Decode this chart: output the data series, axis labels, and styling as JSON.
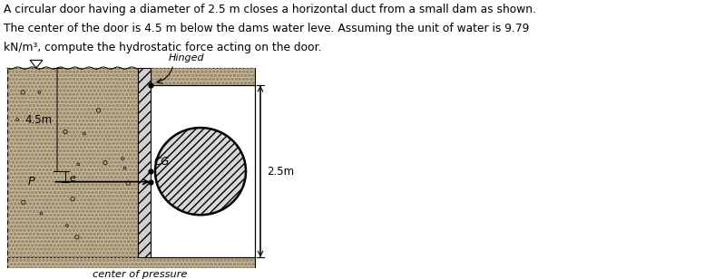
{
  "text_line1": "A circular door having a diameter of 2.5 m closes a horizontal duct from a small dam as shown.",
  "text_line2": "The center of the door is 4.5 m below the dams water leve. Assuming the unit of water is 9.79",
  "text_line3": "kN/m³, compute the hydrostatic force acting on the door.",
  "label_hinged": "Hinged",
  "label_45m": "4.5m",
  "label_CG": "CG",
  "label_25m": "2.5m",
  "label_e": "e",
  "label_P": "P",
  "label_cp": "center of pressure",
  "bg_color": "#ffffff",
  "dam_fill": "#c8b896",
  "dam_hatch_color": "#9a8a70",
  "wall_fill": "#b8b8b8",
  "top_block_fill": "#c8b896",
  "fig_width": 7.87,
  "fig_height": 3.08,
  "dpi": 100
}
